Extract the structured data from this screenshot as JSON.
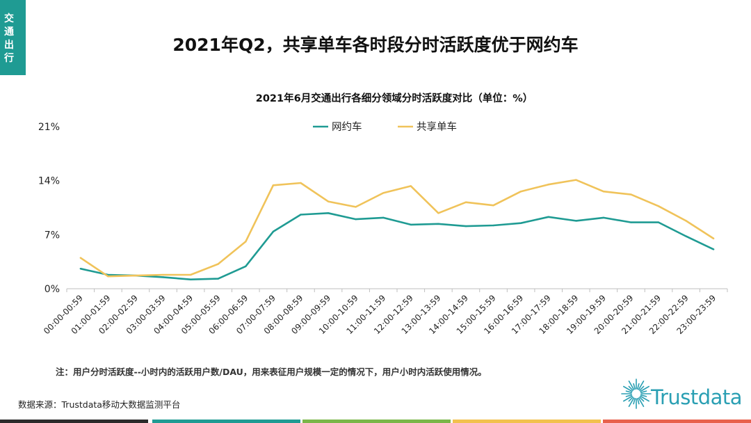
{
  "side_tab": {
    "label_chars": [
      "交",
      "通",
      "出",
      "行"
    ],
    "color": "#1f9b93"
  },
  "page_title": "2021年Q2，共享单车各时段分时活跃度优于网约车",
  "note": "注：用户分时活跃度--小时内的活跃用户数/DAU，用来表征用户规模一定的情况下，用户小时内活跃使用情况。",
  "source": "数据来源：Trustdata移动大数据监测平台",
  "logo": {
    "text": "Trustdata",
    "icon": "sunburst-logo-icon",
    "color": "#2a9fb3"
  },
  "bottom_bar_colors": [
    "#2b2b2b",
    "#1f9b93",
    "#7ab648",
    "#f2c14e",
    "#e8604c"
  ],
  "chart_data": {
    "type": "line",
    "title": "2021年6月交通出行各细分领域分时活跃度对比（单位：%）",
    "xlabel": "",
    "ylabel": "",
    "ylim": [
      0,
      21
    ],
    "yticks": [
      "0%",
      "7%",
      "14%",
      "21%"
    ],
    "ytick_values": [
      0,
      7,
      14,
      21
    ],
    "grid": false,
    "legend_position": "top",
    "categories": [
      "00:00-00:59",
      "01:00-01:59",
      "02:00-02:59",
      "03:00-03:59",
      "04:00-04:59",
      "05:00-05:59",
      "06:00-06:59",
      "07:00-07:59",
      "08:00-08:59",
      "09:00-09:59",
      "10:00-10:59",
      "11:00-11:59",
      "12:00-12:59",
      "13:00-13:59",
      "14:00-14:59",
      "15:00-15:59",
      "16:00-16:59",
      "17:00-17:59",
      "18:00-18:59",
      "19:00-19:59",
      "20:00-20:59",
      "21:00-21:59",
      "22:00-22:59",
      "23:00-23:59"
    ],
    "series": [
      {
        "name": "网约车",
        "color": "#1f9b93",
        "values": [
          2.6,
          1.8,
          1.7,
          1.5,
          1.2,
          1.3,
          2.9,
          7.4,
          9.6,
          9.8,
          9.0,
          9.2,
          8.3,
          8.4,
          8.1,
          8.2,
          8.5,
          9.3,
          8.8,
          9.2,
          8.6,
          8.6,
          6.8,
          5.1
        ]
      },
      {
        "name": "共享单车",
        "color": "#f0c35a",
        "values": [
          4.0,
          1.6,
          1.7,
          1.8,
          1.8,
          3.2,
          6.1,
          13.4,
          13.7,
          11.3,
          10.6,
          12.4,
          13.3,
          9.8,
          11.2,
          10.8,
          12.6,
          13.5,
          14.1,
          12.6,
          12.2,
          10.7,
          8.8,
          6.5
        ]
      }
    ]
  }
}
